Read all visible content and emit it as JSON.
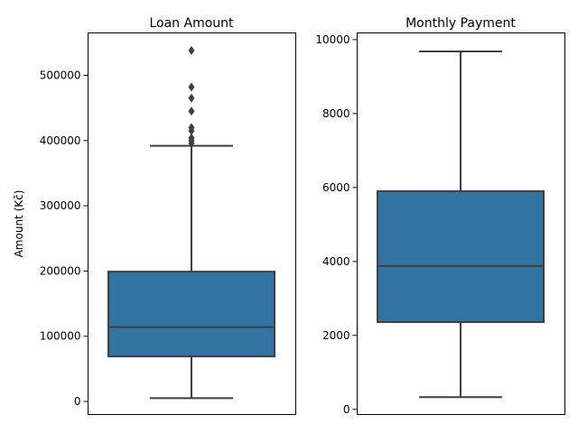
{
  "chart_data": [
    {
      "type": "box",
      "title": "Loan Amount",
      "xlabel": "",
      "ylabel": "Amount (Kč)",
      "ylim": [
        -20000,
        565000
      ],
      "yticks": [
        0,
        100000,
        200000,
        300000,
        400000,
        500000
      ],
      "ytick_labels": [
        "0",
        "100000",
        "200000",
        "300000",
        "400000",
        "500000"
      ],
      "box": {
        "whisker_low": 5000,
        "q1": 69000,
        "median": 114000,
        "q3": 199000,
        "whisker_high": 392000
      },
      "outliers": [
        396000,
        400000,
        404000,
        415000,
        420000,
        445000,
        465000,
        482000,
        538000
      ],
      "color": "#3274a1",
      "line_color": "#3f3f3f"
    },
    {
      "type": "box",
      "title": "Monthly Payment",
      "xlabel": "",
      "ylabel": "",
      "ylim": [
        -140,
        10180
      ],
      "yticks": [
        0,
        2000,
        4000,
        6000,
        8000,
        10000
      ],
      "ytick_labels": [
        "0",
        "2000",
        "4000",
        "6000",
        "8000",
        "10000"
      ],
      "box": {
        "whisker_low": 330,
        "q1": 2360,
        "median": 3880,
        "q3": 5900,
        "whisker_high": 9680
      },
      "outliers": [],
      "color": "#3274a1",
      "line_color": "#3f3f3f"
    }
  ]
}
